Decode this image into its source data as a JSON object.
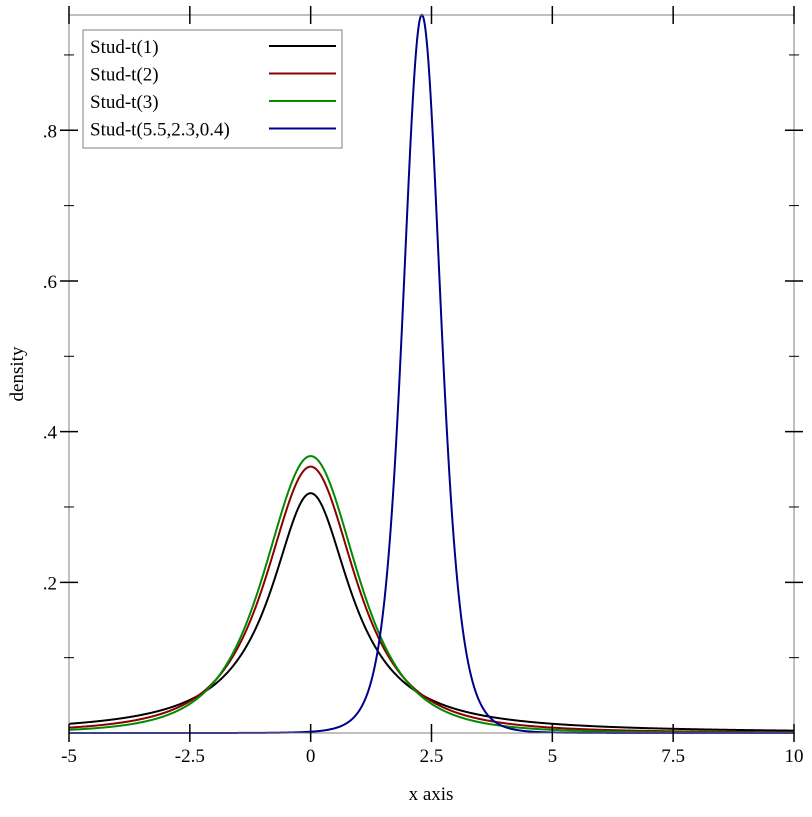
{
  "chart_data": {
    "type": "line",
    "title": "",
    "xlabel": "x axis",
    "ylabel": "density",
    "xlim": [
      -5,
      10
    ],
    "ylim": [
      0,
      0.953
    ],
    "x_ticks": [
      -5,
      -2.5,
      0,
      2.5,
      5,
      7.5,
      10
    ],
    "x_tick_labels": [
      "-5",
      "-2.5",
      "0",
      "2.5",
      "5",
      "7.5",
      "10"
    ],
    "y_ticks": [
      0.2,
      0.4,
      0.6,
      0.8
    ],
    "y_tick_labels": [
      ".2",
      ".4",
      ".6",
      ".8"
    ],
    "y_minor_ticks": [
      0.1,
      0.3,
      0.5,
      0.7,
      0.9
    ],
    "grid": false,
    "legend_placement": "top-left",
    "series": [
      {
        "name": "Stud-t(1)",
        "distribution": "student-t",
        "df": 1,
        "loc": 0,
        "scale": 1,
        "color": "#000000"
      },
      {
        "name": "Stud-t(2)",
        "distribution": "student-t",
        "df": 2,
        "loc": 0,
        "scale": 1,
        "color": "#8b0000"
      },
      {
        "name": "Stud-t(3)",
        "distribution": "student-t",
        "df": 3,
        "loc": 0,
        "scale": 1,
        "color": "#008b00"
      },
      {
        "name": "Stud-t(5.5,2.3,0.4)",
        "distribution": "student-t",
        "df": 5.5,
        "loc": 2.3,
        "scale": 0.4,
        "color": "#00008b"
      }
    ]
  }
}
